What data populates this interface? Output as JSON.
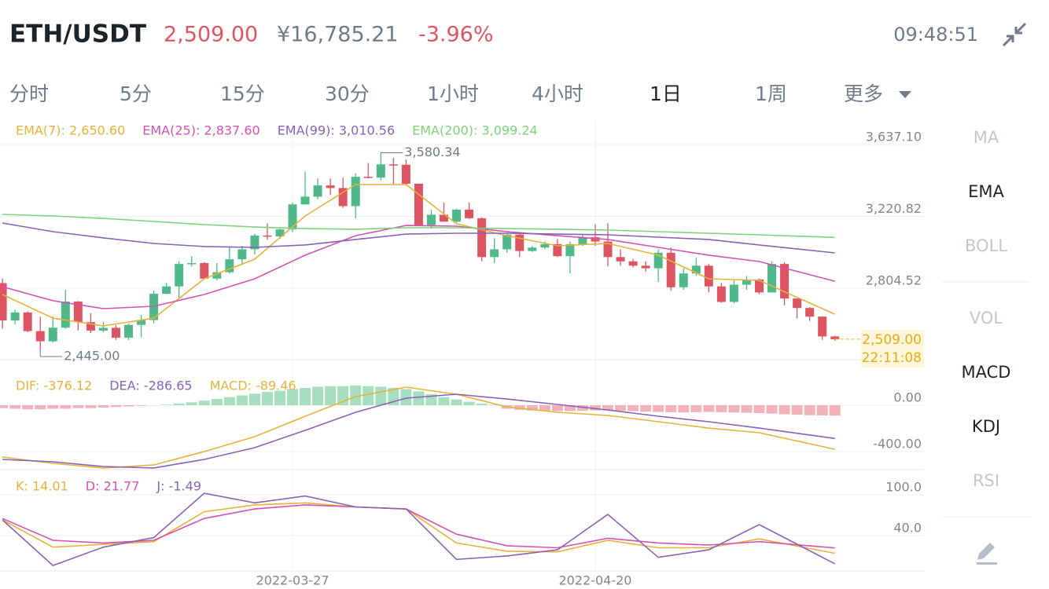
{
  "header": {
    "pair": "ETH/USDT",
    "price": "2,509.00",
    "cny": "¥16,785.21",
    "change": "-3.96%",
    "time": "09:48:51"
  },
  "tabs": [
    "分时",
    "5分",
    "15分",
    "30分",
    "1小时",
    "4小时",
    "1日",
    "1周",
    "更多"
  ],
  "active_tab": "1日",
  "indicators": {
    "main": [
      "MA",
      "EMA",
      "BOLL"
    ],
    "sub": [
      "VOL",
      "MACD",
      "KDJ",
      "RSI"
    ],
    "active": [
      "EMA",
      "MACD",
      "KDJ"
    ]
  },
  "chart_data": [
    {
      "type": "candlestick",
      "up_color": "#4fb98a",
      "down_color": "#dd5563",
      "categories": [
        null,
        null,
        null,
        null,
        null,
        null,
        null,
        null,
        null,
        null,
        null,
        null,
        null,
        null,
        null,
        null,
        null,
        null,
        null,
        null,
        null,
        null,
        null,
        "2022-03-27",
        null,
        null,
        null,
        null,
        null,
        null,
        null,
        null,
        null,
        null,
        null,
        null,
        null,
        null,
        null,
        null,
        null,
        null,
        null,
        null,
        null,
        null,
        null,
        "2022-04-20",
        null,
        null,
        null,
        null,
        null,
        null,
        null,
        null,
        null,
        null,
        null,
        null,
        null,
        null,
        null,
        null,
        null,
        null,
        null
      ],
      "ohlc": [
        [
          2834,
          2860,
          2570,
          2618
        ],
        [
          2618,
          2680,
          2595,
          2664
        ],
        [
          2664,
          2670,
          2550,
          2556
        ],
        [
          2556,
          2640,
          2445,
          2497
        ],
        [
          2497,
          2640,
          2490,
          2576
        ],
        [
          2576,
          2795,
          2570,
          2727
        ],
        [
          2727,
          2730,
          2560,
          2608
        ],
        [
          2608,
          2660,
          2545,
          2559
        ],
        [
          2559,
          2610,
          2550,
          2575
        ],
        [
          2575,
          2590,
          2505,
          2518
        ],
        [
          2518,
          2600,
          2505,
          2592
        ],
        [
          2592,
          2650,
          2520,
          2620
        ],
        [
          2620,
          2790,
          2600,
          2772
        ],
        [
          2772,
          2835,
          2770,
          2815
        ],
        [
          2815,
          2960,
          2750,
          2945
        ],
        [
          2945,
          2990,
          2930,
          2950
        ],
        [
          2950,
          2955,
          2860,
          2860
        ],
        [
          2860,
          2950,
          2850,
          2897
        ],
        [
          2897,
          3040,
          2890,
          2972
        ],
        [
          2972,
          3050,
          2940,
          3030
        ],
        [
          3030,
          3120,
          3000,
          3110
        ],
        [
          3110,
          3180,
          3085,
          3105
        ],
        [
          3105,
          3150,
          3090,
          3145
        ],
        [
          3145,
          3300,
          3130,
          3290
        ],
        [
          3290,
          3480,
          3290,
          3335
        ],
        [
          3335,
          3440,
          3320,
          3400
        ],
        [
          3400,
          3440,
          3345,
          3385
        ],
        [
          3385,
          3445,
          3270,
          3280
        ],
        [
          3280,
          3470,
          3210,
          3450
        ],
        [
          3450,
          3530,
          3440,
          3445
        ],
        [
          3445,
          3580.34,
          3430,
          3522
        ],
        [
          3522,
          3560,
          3405,
          3520
        ],
        [
          3520,
          3550,
          3400,
          3410
        ],
        [
          3410,
          3410,
          3165,
          3170
        ],
        [
          3170,
          3260,
          3150,
          3230
        ],
        [
          3230,
          3300,
          3190,
          3190
        ],
        [
          3190,
          3265,
          3185,
          3260
        ],
        [
          3260,
          3300,
          3205,
          3210
        ],
        [
          3210,
          3215,
          2960,
          2985
        ],
        [
          2985,
          3095,
          2950,
          3030
        ],
        [
          3030,
          3120,
          3010,
          3115
        ],
        [
          3115,
          3130,
          2985,
          3020
        ],
        [
          3020,
          3050,
          3015,
          3040
        ],
        [
          3040,
          3075,
          3030,
          3060
        ],
        [
          3060,
          3090,
          2985,
          2990
        ],
        [
          2990,
          3075,
          2890,
          3060
        ],
        [
          3060,
          3120,
          3050,
          3100
        ],
        [
          3100,
          3175,
          3050,
          3075
        ],
        [
          3075,
          3180,
          2930,
          2985
        ],
        [
          2985,
          3030,
          2935,
          2960
        ],
        [
          2960,
          2975,
          2925,
          2935
        ],
        [
          2935,
          2960,
          2900,
          2920
        ],
        [
          2920,
          3030,
          2840,
          3010
        ],
        [
          3010,
          3040,
          2790,
          2810
        ],
        [
          2810,
          2920,
          2795,
          2890
        ],
        [
          2890,
          2980,
          2875,
          2935
        ],
        [
          2935,
          2945,
          2780,
          2815
        ],
        [
          2815,
          2835,
          2720,
          2725
        ],
        [
          2725,
          2850,
          2715,
          2825
        ],
        [
          2825,
          2875,
          2795,
          2855
        ],
        [
          2855,
          2860,
          2770,
          2780
        ],
        [
          2780,
          2960,
          2780,
          2945
        ],
        [
          2945,
          2955,
          2705,
          2745
        ],
        [
          2745,
          2745,
          2630,
          2690
        ],
        [
          2690,
          2695,
          2615,
          2640
        ],
        [
          2640,
          2640,
          2505,
          2525
        ],
        [
          2525,
          2530,
          2500,
          2509
        ]
      ],
      "series": [
        {
          "name": "EMA(7): 2,650.60",
          "color": "#e6b23a",
          "x": [
            0,
            4,
            8,
            12,
            16,
            20,
            24,
            28,
            32,
            36,
            40,
            44,
            48,
            52,
            56,
            60,
            66
          ],
          "values": [
            2768,
            2631,
            2586,
            2631,
            2859,
            2973,
            3223,
            3405,
            3405,
            3178,
            3109,
            3050,
            3064,
            2996,
            2859,
            2850,
            2654
          ]
        },
        {
          "name": "EMA(25): 2,837.60",
          "color": "#d352b3",
          "x": [
            0,
            4,
            8,
            12,
            16,
            20,
            24,
            28,
            32,
            36,
            40,
            44,
            48,
            52,
            56,
            60,
            66
          ],
          "values": [
            2813,
            2732,
            2686,
            2700,
            2768,
            2859,
            2996,
            3109,
            3168,
            3164,
            3132,
            3109,
            3087,
            3041,
            2996,
            2959,
            2845
          ]
        },
        {
          "name": "EMA(99): 3,010.56",
          "color": "#8962b5",
          "x": [
            0,
            4,
            8,
            12,
            16,
            20,
            24,
            28,
            32,
            36,
            40,
            44,
            48,
            52,
            56,
            60,
            66
          ],
          "values": [
            3182,
            3132,
            3096,
            3064,
            3046,
            3041,
            3055,
            3087,
            3118,
            3123,
            3123,
            3118,
            3114,
            3100,
            3087,
            3055,
            3009
          ]
        },
        {
          "name": "EMA(200): 3,099.24",
          "color": "#7ed27a",
          "x": [
            0,
            4,
            8,
            12,
            16,
            20,
            24,
            28,
            32,
            36,
            40,
            44,
            48,
            52,
            56,
            60,
            66
          ],
          "values": [
            3232,
            3223,
            3209,
            3191,
            3173,
            3159,
            3150,
            3146,
            3155,
            3155,
            3150,
            3146,
            3141,
            3132,
            3123,
            3114,
            3099
          ]
        }
      ],
      "annotations": [
        {
          "label": "3,580.34",
          "value": 3580.34
        },
        {
          "label": "2,445.00",
          "value": 2445
        }
      ],
      "last_price": {
        "label": "2,509.00",
        "value": 2509,
        "countdown": "22:11:08"
      },
      "ylim": [
        2390.4,
        3769.05
      ],
      "yticks": [
        {
          "value": 3637.1,
          "label": "3,637.10"
        },
        {
          "value": 3220.82,
          "label": "3,220.82"
        },
        {
          "value": 2804.52,
          "label": "2,804.52"
        }
      ]
    },
    {
      "type": "macd",
      "series": [
        {
          "name": "DIF: -376.12",
          "color": "#e6b23a",
          "x": [
            0,
            4,
            8,
            12,
            16,
            20,
            24,
            28,
            32,
            36,
            40,
            44,
            48,
            52,
            56,
            60,
            66
          ],
          "values": [
            -447,
            -502,
            -542,
            -515,
            -400,
            -271,
            -95,
            75,
            156,
            95,
            -14,
            -61,
            -88,
            -142,
            -197,
            -237,
            -380
          ]
        },
        {
          "name": "DEA: -286.65",
          "color": "#8962b5",
          "x": [
            0,
            4,
            8,
            12,
            16,
            20,
            24,
            28,
            32,
            36,
            40,
            44,
            48,
            52,
            56,
            60,
            66
          ],
          "values": [
            -468,
            -488,
            -529,
            -542,
            -468,
            -366,
            -217,
            -61,
            61,
            95,
            54,
            7,
            -41,
            -95,
            -142,
            -197,
            -287
          ]
        }
      ],
      "histogram": {
        "name": "MACD: -89.46",
        "color": "#e0b43e",
        "up_color": "#a6dfc0",
        "down_color": "#f0b1b9",
        "values": [
          -25,
          -30,
          -35,
          -35,
          -30,
          -30,
          -25,
          -25,
          -20,
          -15,
          -10,
          -5,
          -2,
          5,
          15,
          25,
          40,
          55,
          70,
          85,
          100,
          115,
          125,
          140,
          150,
          160,
          165,
          165,
          170,
          165,
          160,
          150,
          140,
          120,
          95,
          70,
          50,
          30,
          15,
          5,
          -30,
          -40,
          -45,
          -48,
          -50,
          -50,
          -48,
          -45,
          -45,
          -48,
          -50,
          -55,
          -58,
          -60,
          -62,
          -60,
          -58,
          -60,
          -62,
          -65,
          -68,
          -72,
          -78,
          -82,
          -86,
          -88,
          -89.46
        ]
      },
      "ylim": [
        -556,
        380
      ],
      "yticks": [
        {
          "value": 0,
          "label": "0.00"
        },
        {
          "value": -400,
          "label": "-400.00"
        }
      ]
    },
    {
      "type": "line",
      "series": [
        {
          "name": "K: 14.01",
          "color": "#e6b23a",
          "x": [
            0,
            4,
            8,
            12,
            16,
            20,
            24,
            28,
            32,
            36,
            40,
            44,
            48,
            52,
            56,
            60,
            66
          ],
          "values": [
            63,
            23,
            27,
            31,
            75,
            85,
            88,
            82,
            79,
            29,
            17,
            16,
            33,
            22,
            22,
            35,
            14
          ]
        },
        {
          "name": "D: 21.77",
          "color": "#d352b3",
          "x": [
            0,
            4,
            8,
            12,
            16,
            20,
            24,
            28,
            32,
            36,
            40,
            44,
            48,
            52,
            56,
            60,
            66
          ],
          "values": [
            65,
            33,
            29,
            33,
            65,
            79,
            85,
            82,
            79,
            42,
            25,
            22,
            36,
            29,
            26,
            31,
            21.77
          ]
        },
        {
          "name": "J: -1.49",
          "color": "#8962b5",
          "x": [
            0,
            4,
            8,
            12,
            16,
            20,
            24,
            28,
            32,
            36,
            40,
            44,
            48,
            52,
            56,
            60,
            66
          ],
          "values": [
            63,
            -4,
            23,
            37,
            102,
            88,
            98,
            82,
            79,
            5,
            10,
            19,
            71,
            8,
            19,
            56,
            -1.49
          ]
        }
      ],
      "ylim": [
        -12,
        131
      ],
      "yticks": [
        {
          "value": 100,
          "label": "100.0"
        },
        {
          "value": 40,
          "label": "40.0"
        }
      ]
    }
  ]
}
